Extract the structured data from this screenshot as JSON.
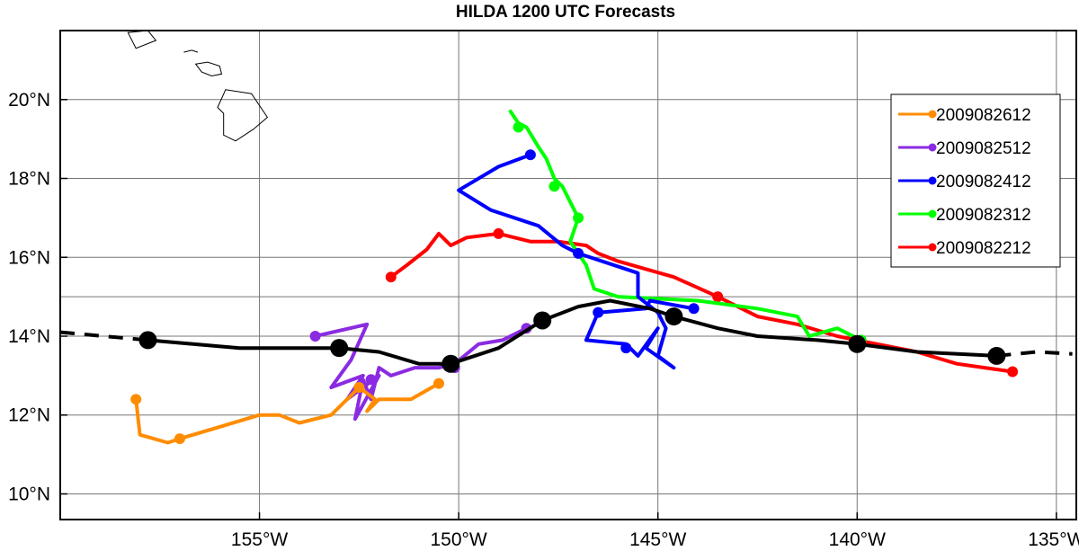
{
  "chart_data": {
    "type": "line",
    "title": "HILDA 1200 UTC Forecasts",
    "xlim": [
      -160,
      -134.5
    ],
    "ylim": [
      9.35,
      21.75
    ],
    "grid": true,
    "legend_position": "top-right",
    "x_ticks": [
      {
        "value": -155,
        "label": "155°W"
      },
      {
        "value": -150,
        "label": "150°W"
      },
      {
        "value": -145,
        "label": "145°W"
      },
      {
        "value": -140,
        "label": "140°W"
      },
      {
        "value": -135,
        "label": "135°W"
      }
    ],
    "y_ticks": [
      {
        "value": 10,
        "label": "10°N"
      },
      {
        "value": 12,
        "label": "12°N"
      },
      {
        "value": 14,
        "label": "14°N"
      },
      {
        "value": 16,
        "label": "16°N"
      },
      {
        "value": 18,
        "label": "18°N"
      },
      {
        "value": 20,
        "label": "20°N"
      }
    ],
    "extra_gridlines_lat": [
      15
    ],
    "best_track": {
      "color": "#000000",
      "dashed_west": [
        [
          -160.4,
          14.1
        ],
        [
          -157.8,
          13.9
        ]
      ],
      "dashed_east": [
        [
          -136.5,
          13.5
        ],
        [
          -135.5,
          13.6
        ],
        [
          -134.6,
          13.55
        ]
      ],
      "solid": [
        [
          -157.8,
          13.9
        ],
        [
          -155.5,
          13.7
        ],
        [
          -153,
          13.7
        ],
        [
          -152,
          13.6
        ],
        [
          -151,
          13.3
        ],
        [
          -150.2,
          13.3
        ],
        [
          -149,
          13.7
        ],
        [
          -147.9,
          14.4
        ],
        [
          -147,
          14.75
        ],
        [
          -146.2,
          14.9
        ],
        [
          -145.2,
          14.7
        ],
        [
          -144.6,
          14.5
        ],
        [
          -143.5,
          14.2
        ],
        [
          -142.5,
          14.0
        ],
        [
          -141,
          13.9
        ],
        [
          -140,
          13.8
        ],
        [
          -138.5,
          13.6
        ],
        [
          -136.5,
          13.5
        ]
      ],
      "points": [
        [
          -157.8,
          13.9
        ],
        [
          -153,
          13.7
        ],
        [
          -150.2,
          13.3
        ],
        [
          -147.9,
          14.4
        ],
        [
          -144.6,
          14.5
        ],
        [
          -140,
          13.8
        ],
        [
          -136.5,
          13.5
        ]
      ]
    },
    "series": [
      {
        "name": "2009082612",
        "color": "#ff8c00",
        "x": [
          -150.5,
          -151.2,
          -152,
          -152.3,
          -152.1,
          -152.5,
          -153.2,
          -154,
          -154.5,
          -155,
          -156,
          -157,
          -157.3,
          -158,
          -158.1
        ],
        "y": [
          12.8,
          12.4,
          12.4,
          12.1,
          12.4,
          12.7,
          12.0,
          11.8,
          12.0,
          12.0,
          11.7,
          11.4,
          11.3,
          11.5,
          12.4
        ],
        "points": [
          [
            -150.5,
            12.8
          ],
          [
            -152.5,
            12.7
          ],
          [
            -157,
            11.4
          ],
          [
            -158.1,
            12.4
          ]
        ]
      },
      {
        "name": "2009082512",
        "color": "#8a2be2",
        "x": [
          -148.3,
          -148.9,
          -149.5,
          -150.1,
          -150.5,
          -151.1,
          -151.7,
          -152.0,
          -152.2,
          -152.4,
          -152.6,
          -152.0,
          -152.8,
          -152.4,
          -153.2,
          -152.7,
          -152.3,
          -153.6
        ],
        "y": [
          14.2,
          13.9,
          13.8,
          13.3,
          13.2,
          13.2,
          13.0,
          13.2,
          12.4,
          12.9,
          11.9,
          13.0,
          12.4,
          13.0,
          12.7,
          13.4,
          14.3,
          14.0
        ],
        "points": [
          [
            -148.3,
            14.2
          ],
          [
            -150.1,
            13.2
          ],
          [
            -152.2,
            12.9
          ],
          [
            -153.6,
            14.0
          ]
        ]
      },
      {
        "name": "2009082412",
        "color": "#0000ff",
        "x": [
          -148.2,
          -149,
          -150,
          -149.2,
          -148.0,
          -147.4,
          -147.0,
          -145.5,
          -145.5,
          -145.0,
          -144.8,
          -145.0,
          -144.6,
          -145.3,
          -145.0,
          -145.5,
          -145.8,
          -146.8,
          -146.5,
          -145.3,
          -145.2,
          -144.1
        ],
        "y": [
          18.6,
          18.3,
          17.7,
          17.2,
          16.8,
          16.3,
          16.1,
          15.6,
          15.0,
          14.6,
          14.2,
          13.5,
          13.2,
          13.7,
          14.2,
          13.5,
          13.8,
          13.9,
          14.6,
          14.7,
          14.9,
          14.7
        ],
        "points": [
          [
            -148.2,
            18.6
          ],
          [
            -147,
            16.1
          ],
          [
            -145.8,
            13.7
          ],
          [
            -146.5,
            14.6
          ],
          [
            -144.1,
            14.7
          ]
        ]
      },
      {
        "name": "2009082312",
        "color": "#00ff00",
        "x": [
          -148.7,
          -148.5,
          -148.3,
          -148,
          -147.8,
          -147.6,
          -147.4,
          -147.0,
          -147.2,
          -146.8,
          -146.6,
          -146,
          -144,
          -142.5,
          -141.5,
          -141.2,
          -140.5,
          -139.9
        ],
        "y": [
          19.7,
          19.4,
          19.3,
          18.8,
          18.5,
          18.0,
          17.8,
          17.0,
          16.4,
          15.8,
          15.2,
          15.0,
          14.9,
          14.7,
          14.5,
          14.0,
          14.2,
          13.9
        ],
        "points": [
          [
            -148.5,
            19.3
          ],
          [
            -147.6,
            17.8
          ],
          [
            -147.0,
            17.0
          ],
          [
            -139.9,
            13.9
          ]
        ]
      },
      {
        "name": "2009082212",
        "color": "#ff0000",
        "x": [
          -151.7,
          -151.3,
          -150.8,
          -150.5,
          -150.2,
          -149.8,
          -149,
          -148.2,
          -147.5,
          -146.8,
          -146.5,
          -146,
          -145.3,
          -144.6,
          -143.5,
          -142.5,
          -141.5,
          -140.5,
          -139.5,
          -138.5,
          -137.5,
          -136.8,
          -136.1
        ],
        "y": [
          15.5,
          15.8,
          16.2,
          16.6,
          16.3,
          16.5,
          16.6,
          16.4,
          16.4,
          16.3,
          16.1,
          15.9,
          15.7,
          15.5,
          15.0,
          14.5,
          14.3,
          14.0,
          13.8,
          13.6,
          13.3,
          13.2,
          13.1
        ],
        "points": [
          [
            -151.7,
            15.5
          ],
          [
            -149,
            16.6
          ],
          [
            -143.5,
            15.0
          ],
          [
            -136.1,
            13.1
          ]
        ]
      }
    ]
  },
  "islands": [
    [
      [
        -158.3,
        21.7
      ],
      [
        -157.8,
        21.75
      ],
      [
        -157.6,
        21.5
      ],
      [
        -158.1,
        21.3
      ]
    ],
    [
      [
        -156.9,
        21.2
      ],
      [
        -156.7,
        21.25
      ],
      [
        -156.55,
        21.2
      ]
    ],
    [
      [
        -156.6,
        20.9
      ],
      [
        -156.3,
        20.95
      ],
      [
        -156.0,
        20.85
      ],
      [
        -155.95,
        20.65
      ],
      [
        -156.2,
        20.6
      ],
      [
        -156.45,
        20.7
      ]
    ],
    [
      [
        -155.85,
        20.25
      ],
      [
        -155.2,
        20.15
      ],
      [
        -154.8,
        19.55
      ],
      [
        -155.15,
        19.25
      ],
      [
        -155.6,
        18.95
      ],
      [
        -155.9,
        19.1
      ],
      [
        -155.9,
        19.65
      ],
      [
        -156.05,
        19.8
      ]
    ]
  ]
}
